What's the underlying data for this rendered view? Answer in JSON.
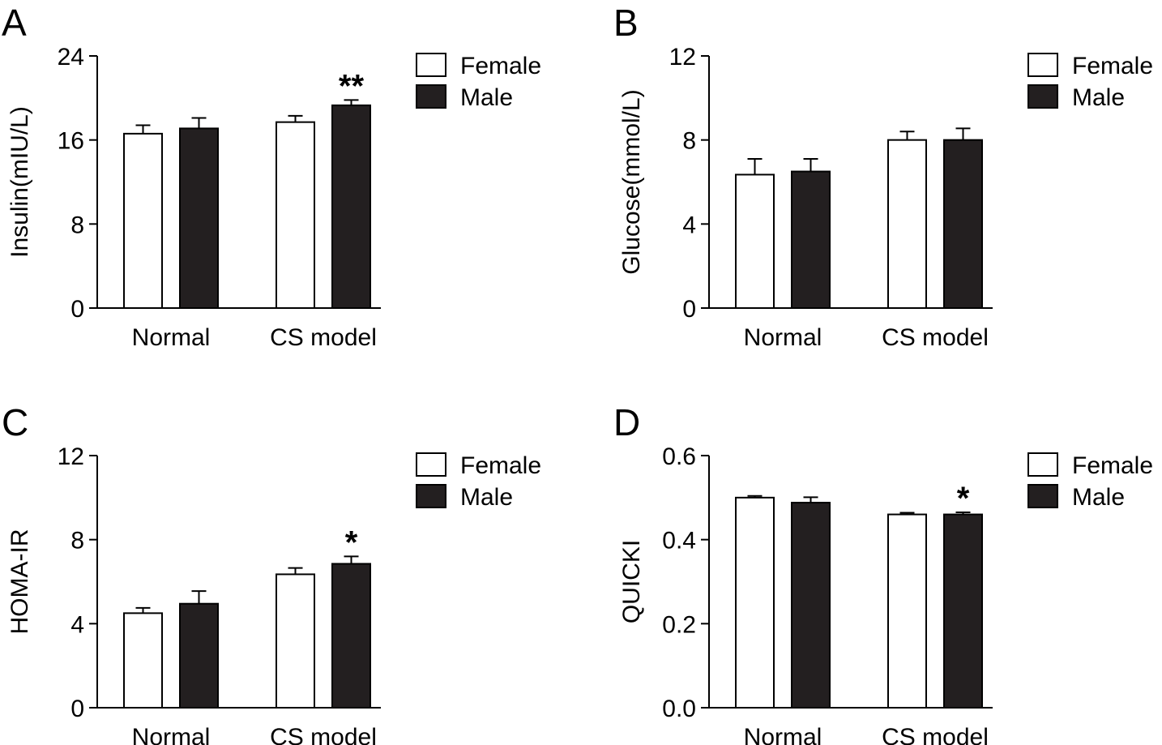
{
  "legend_labels": {
    "female": "Female",
    "male": "Male"
  },
  "colors": {
    "female": "#ffffff",
    "male": "#231f20",
    "stroke": "#000000"
  },
  "chart_data": [
    {
      "panel_label": "A",
      "type": "bar",
      "categories": [
        "Normal",
        "CS model"
      ],
      "series": [
        {
          "name": "Female",
          "values": [
            16.6,
            17.7
          ],
          "errors": [
            0.8,
            0.6
          ]
        },
        {
          "name": "Male",
          "values": [
            17.1,
            19.3
          ],
          "errors": [
            1.0,
            0.5
          ]
        }
      ],
      "ylabel": "Insulin(mIU/L)",
      "ylim": [
        0,
        24
      ],
      "yticks": [
        0,
        8,
        16,
        24
      ],
      "ytick_labels": [
        "0",
        "8",
        "16",
        "24"
      ],
      "annotations": [
        {
          "series": 1,
          "category": 1,
          "text": "**"
        }
      ],
      "legend": "top-right"
    },
    {
      "panel_label": "B",
      "type": "bar",
      "categories": [
        "Normal",
        "CS model"
      ],
      "series": [
        {
          "name": "Female",
          "values": [
            6.35,
            8.0
          ],
          "errors": [
            0.75,
            0.4
          ]
        },
        {
          "name": "Male",
          "values": [
            6.5,
            8.0
          ],
          "errors": [
            0.6,
            0.55
          ]
        }
      ],
      "ylabel": "Glucose(mmol/L)",
      "ylim": [
        0,
        12
      ],
      "yticks": [
        0,
        4,
        8,
        12
      ],
      "ytick_labels": [
        "0",
        "4",
        "8",
        "12"
      ],
      "annotations": [],
      "legend": "top-right"
    },
    {
      "panel_label": "C",
      "type": "bar",
      "categories": [
        "Normal",
        "CS model"
      ],
      "series": [
        {
          "name": "Female",
          "values": [
            4.5,
            6.35
          ],
          "errors": [
            0.25,
            0.3
          ]
        },
        {
          "name": "Male",
          "values": [
            4.95,
            6.85
          ],
          "errors": [
            0.6,
            0.35
          ]
        }
      ],
      "ylabel": "HOMA-IR",
      "ylim": [
        0,
        12
      ],
      "yticks": [
        0,
        4,
        8,
        12
      ],
      "ytick_labels": [
        "0",
        "4",
        "8",
        "12"
      ],
      "annotations": [
        {
          "series": 1,
          "category": 1,
          "text": "*"
        }
      ],
      "legend": "top-right"
    },
    {
      "panel_label": "D",
      "type": "bar",
      "categories": [
        "Normal",
        "CS model"
      ],
      "series": [
        {
          "name": "Female",
          "values": [
            0.5,
            0.46
          ],
          "errors": [
            0.004,
            0.004
          ]
        },
        {
          "name": "Male",
          "values": [
            0.488,
            0.46
          ],
          "errors": [
            0.013,
            0.005
          ]
        }
      ],
      "ylabel": "QUICKI",
      "ylim": [
        0,
        0.6
      ],
      "yticks": [
        0,
        0.2,
        0.4,
        0.6
      ],
      "ytick_labels": [
        "0.0",
        "0.2",
        "0.4",
        "0.6"
      ],
      "annotations": [
        {
          "series": 1,
          "category": 1,
          "text": "*"
        }
      ],
      "legend": "top-right"
    }
  ]
}
